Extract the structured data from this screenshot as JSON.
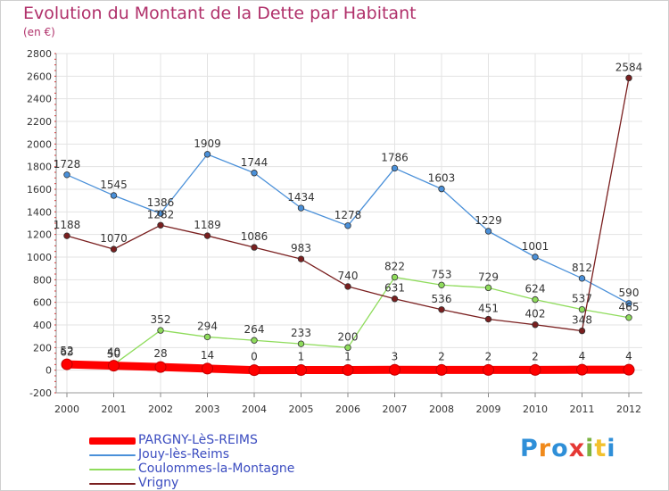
{
  "title": "Evolution du Montant de la Dette par Habitant",
  "unit": "(en €)",
  "logo": {
    "letters": [
      "P",
      "r",
      "o",
      "x",
      "i",
      "t",
      "i"
    ],
    "colors": [
      "#2f8fd8",
      "#f08a1c",
      "#2f8fd8",
      "#e53935",
      "#7cb342",
      "#f2c12e",
      "#2f8fd8"
    ]
  },
  "chart_data": {
    "type": "line",
    "x": [
      2000,
      2001,
      2002,
      2003,
      2004,
      2005,
      2006,
      2007,
      2008,
      2009,
      2010,
      2011,
      2012
    ],
    "ylim": [
      -200,
      2800
    ],
    "yticks": [
      -200,
      0,
      200,
      400,
      600,
      800,
      1000,
      1200,
      1400,
      1600,
      1800,
      2000,
      2200,
      2400,
      2600,
      2800
    ],
    "grid": true,
    "legend_position": "bottom-left",
    "series": [
      {
        "name": "PARGNY-LèS-REIMS",
        "color": "#ff0000",
        "values": [
          52,
          40,
          28,
          14,
          0,
          1,
          1,
          3,
          2,
          2,
          2,
          4,
          4
        ],
        "labels": [
          "52",
          "40",
          "28",
          "14",
          "0",
          "1",
          "1",
          "3",
          "2",
          "2",
          "2",
          "4",
          "4"
        ]
      },
      {
        "name": "Jouy-lès-Reims",
        "color": "#4a90d9",
        "values": [
          1728,
          1545,
          1386,
          1909,
          1744,
          1434,
          1278,
          1786,
          1603,
          1229,
          1001,
          812,
          590
        ],
        "labels": [
          "1728",
          "1545",
          "1386",
          "1909",
          "1744",
          "1434",
          "1278",
          "1786",
          "1603",
          "1229",
          "1001",
          "812",
          "590"
        ]
      },
      {
        "name": "Coulommes-la-Montagne",
        "color": "#8fdc5c",
        "values": [
          63,
          50,
          352,
          294,
          264,
          233,
          200,
          822,
          753,
          729,
          624,
          537,
          465
        ],
        "labels": [
          "63",
          "50",
          "352",
          "294",
          "264",
          "233",
          "200",
          "822",
          "753",
          "729",
          "624",
          "537",
          "465"
        ]
      },
      {
        "name": "Vrigny",
        "color": "#7a1f1f",
        "values": [
          1188,
          1070,
          1282,
          1189,
          1086,
          983,
          740,
          631,
          536,
          451,
          402,
          348,
          2584
        ],
        "labels": [
          "1188",
          "1070",
          "1282",
          "1189",
          "1086",
          "983",
          "740",
          "631",
          "536",
          "451",
          "402",
          "348",
          "2584"
        ]
      }
    ]
  }
}
